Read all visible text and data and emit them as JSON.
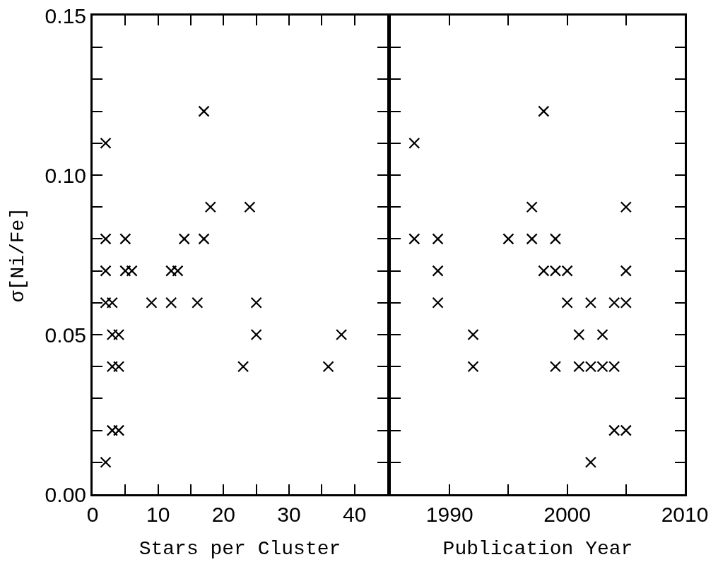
{
  "chart_data": [
    {
      "type": "scatter",
      "xlabel": "Stars per Cluster",
      "ylabel": "σ[Ni/Fe]",
      "marker": "cross",
      "grid": false,
      "xlim": [
        0,
        45
      ],
      "xticks": [
        0,
        {
          "value": 5,
          "label": null
        },
        10,
        {
          "value": 15,
          "label": null
        },
        20,
        {
          "value": 25,
          "label": null
        },
        30,
        {
          "value": 35,
          "label": null
        },
        40
      ],
      "ylim": [
        0,
        0.15
      ],
      "yticks": [
        {
          "value": 0,
          "label": "0.00"
        },
        {
          "value": 0.01,
          "label": null
        },
        {
          "value": 0.02,
          "label": null
        },
        {
          "value": 0.03,
          "label": null
        },
        {
          "value": 0.04,
          "label": null
        },
        {
          "value": 0.05,
          "label": "0.05"
        },
        {
          "value": 0.06,
          "label": null
        },
        {
          "value": 0.07,
          "label": null
        },
        {
          "value": 0.08,
          "label": null
        },
        {
          "value": 0.09,
          "label": null
        },
        {
          "value": 0.1,
          "label": "0.10"
        },
        {
          "value": 0.11,
          "label": null
        },
        {
          "value": 0.12,
          "label": null
        },
        {
          "value": 0.13,
          "label": null
        },
        {
          "value": 0.14,
          "label": null
        },
        {
          "value": 0.15,
          "label": "0.15"
        }
      ],
      "series": [
        {
          "color": "#000000",
          "x": [
            17,
            2,
            18,
            24,
            2,
            5,
            14,
            17,
            2,
            5,
            6,
            12,
            13,
            2,
            3,
            9,
            12,
            16,
            25,
            3,
            4,
            25,
            38,
            3,
            4,
            23,
            36,
            3,
            4,
            2
          ],
          "values": [
            0.12,
            0.11,
            0.09,
            0.09,
            0.08,
            0.08,
            0.08,
            0.08,
            0.07,
            0.07,
            0.07,
            0.07,
            0.07,
            0.06,
            0.06,
            0.06,
            0.06,
            0.06,
            0.06,
            0.05,
            0.05,
            0.05,
            0.05,
            0.04,
            0.04,
            0.04,
            0.04,
            0.02,
            0.02,
            0.01
          ]
        }
      ]
    },
    {
      "type": "scatter",
      "xlabel": "Publication Year",
      "marker": "cross",
      "grid": false,
      "tick_labels": "x",
      "xlim": [
        1985,
        2010
      ],
      "xticks": [
        1990,
        {
          "value": 1995,
          "label": null
        },
        2000,
        {
          "value": 2005,
          "label": null
        },
        2010
      ],
      "ylim": [
        0,
        0.15
      ],
      "yticks": [
        {
          "value": 0,
          "label": null
        },
        {
          "value": 0.01,
          "label": null
        },
        {
          "value": 0.02,
          "label": null
        },
        {
          "value": 0.03,
          "label": null
        },
        {
          "value": 0.04,
          "label": null
        },
        {
          "value": 0.05,
          "label": null
        },
        {
          "value": 0.06,
          "label": null
        },
        {
          "value": 0.07,
          "label": null
        },
        {
          "value": 0.08,
          "label": null
        },
        {
          "value": 0.09,
          "label": null
        },
        {
          "value": 0.1,
          "label": null
        },
        {
          "value": 0.11,
          "label": null
        },
        {
          "value": 0.12,
          "label": null
        },
        {
          "value": 0.13,
          "label": null
        },
        {
          "value": 0.14,
          "label": null
        },
        {
          "value": 0.15,
          "label": null
        }
      ],
      "series": [
        {
          "color": "#000000",
          "x": [
            1998,
            1987,
            1997,
            2005,
            1987,
            1989,
            1995,
            1997,
            1999,
            1989,
            1998,
            1999,
            2000,
            2005,
            1989,
            2000,
            2002,
            2004,
            2005,
            1992,
            2001,
            2003,
            1992,
            1999,
            2001,
            2002,
            2003,
            2004,
            2004,
            2005,
            2002
          ],
          "values": [
            0.12,
            0.11,
            0.09,
            0.09,
            0.08,
            0.08,
            0.08,
            0.08,
            0.08,
            0.07,
            0.07,
            0.07,
            0.07,
            0.07,
            0.06,
            0.06,
            0.06,
            0.06,
            0.06,
            0.05,
            0.05,
            0.05,
            0.04,
            0.04,
            0.04,
            0.04,
            0.04,
            0.04,
            0.02,
            0.02,
            0.01
          ]
        }
      ]
    }
  ]
}
